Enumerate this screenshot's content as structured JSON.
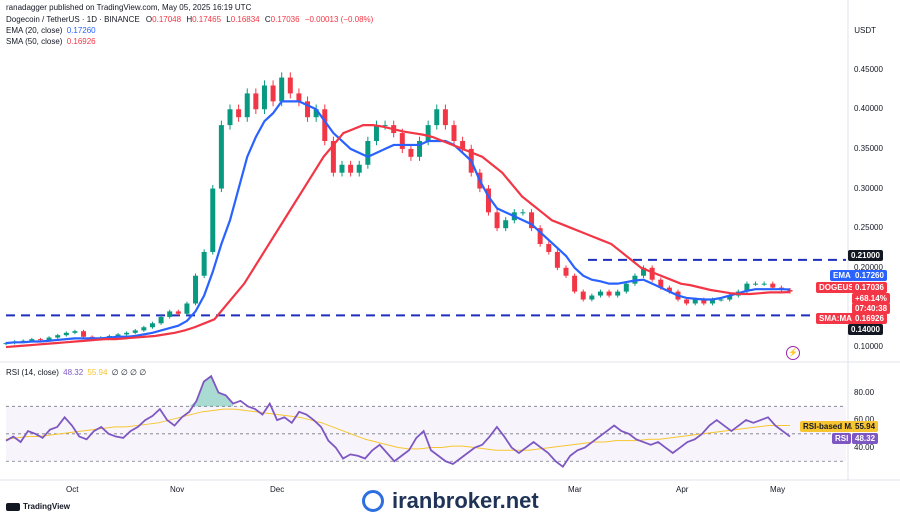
{
  "header": {
    "publisher_text": "ranadagger published on TradingView.com, May 05, 2025 16:19 UTC"
  },
  "legend": {
    "symbol": "Dogecoin / TetherUS · 1D · BINANCE",
    "o_label": "O",
    "o": "0.17048",
    "h_label": "H",
    "h": "0.17465",
    "l_label": "L",
    "l": "0.16834",
    "c_label": "C",
    "c": "0.17036",
    "change": "−0.00013 (−0.08%)",
    "ema_label": "EMA (20, close)",
    "ema_value": "0.17260",
    "sma_label": "SMA (50, close)",
    "sma_value": "0.16926",
    "rsi_label": "RSI (14, close)",
    "rsi_value": "48.32",
    "rsi_ma_value": "55.94",
    "rsi_extra": "∅ ∅ ∅ ∅"
  },
  "price_axis": {
    "currency": "USDT",
    "ticks": [
      "0.45000",
      "0.40000",
      "0.35000",
      "0.30000",
      "0.25000",
      "0.20000",
      "0.10000"
    ]
  },
  "rsi_axis": {
    "ticks": [
      "80.00",
      "60.00",
      "40.00"
    ]
  },
  "tags": {
    "r210": "0.21000",
    "ema_tag_label": "EMA",
    "ema_tag_value": "0.17260",
    "sym_tag_label": "DOGEUSDT",
    "sym_tag_value": "0.17036",
    "pct": "+68.14%",
    "timer": "07:40:38",
    "sma_tag_label": "SMA:MA",
    "sma_tag_value": "0.16926",
    "s140": "0.14000",
    "rsi_ma_tag_label": "RSI-based MA",
    "rsi_ma_tag_value": "55.94",
    "rsi_tag_label": "RSI",
    "rsi_tag_value": "48.32"
  },
  "time_axis": [
    "Oct",
    "Nov",
    "Dec",
    "Mar",
    "Apr",
    "May"
  ],
  "branding": {
    "tradingview": "TradingView",
    "watermark": "iranbroker.net"
  },
  "colors": {
    "ema": "#2962ff",
    "sma": "#f23645",
    "up": "#089981",
    "down": "#f23645",
    "rsi": "#7e57c2",
    "rsi_ma": "#f7c531",
    "level": "#1e2ebd"
  },
  "chart_data": [
    {
      "type": "line",
      "title": "Dogecoin / TetherUS · 1D · BINANCE",
      "ylim": [
        0.09,
        0.5
      ],
      "levels": [
        0.21,
        0.14
      ],
      "series": [
        {
          "name": "DOGEUSDT",
          "values": [
            0.105,
            0.107,
            0.108,
            0.11,
            0.109,
            0.112,
            0.115,
            0.118,
            0.12,
            0.113,
            0.111,
            0.112,
            0.114,
            0.116,
            0.118,
            0.121,
            0.125,
            0.13,
            0.138,
            0.145,
            0.142,
            0.155,
            0.19,
            0.22,
            0.3,
            0.38,
            0.4,
            0.39,
            0.42,
            0.4,
            0.43,
            0.41,
            0.44,
            0.42,
            0.41,
            0.39,
            0.4,
            0.36,
            0.32,
            0.33,
            0.32,
            0.33,
            0.36,
            0.38,
            0.38,
            0.37,
            0.35,
            0.34,
            0.36,
            0.38,
            0.4,
            0.38,
            0.36,
            0.35,
            0.32,
            0.3,
            0.27,
            0.25,
            0.26,
            0.27,
            0.27,
            0.25,
            0.23,
            0.22,
            0.2,
            0.19,
            0.17,
            0.16,
            0.165,
            0.17,
            0.165,
            0.17,
            0.18,
            0.19,
            0.2,
            0.185,
            0.175,
            0.17,
            0.16,
            0.155,
            0.16,
            0.155,
            0.16,
            0.16,
            0.165,
            0.17,
            0.18,
            0.18,
            0.18,
            0.175,
            0.172,
            0.17
          ]
        },
        {
          "name": "EMA (20, close)",
          "values": [
            0.105,
            0.106,
            0.106,
            0.107,
            0.107,
            0.108,
            0.109,
            0.11,
            0.111,
            0.111,
            0.111,
            0.111,
            0.112,
            0.113,
            0.113,
            0.114,
            0.116,
            0.118,
            0.121,
            0.124,
            0.127,
            0.133,
            0.145,
            0.165,
            0.195,
            0.23,
            0.26,
            0.3,
            0.34,
            0.365,
            0.385,
            0.395,
            0.41,
            0.41,
            0.41,
            0.405,
            0.4,
            0.385,
            0.37,
            0.36,
            0.35,
            0.345,
            0.34,
            0.345,
            0.35,
            0.355,
            0.355,
            0.355,
            0.355,
            0.36,
            0.36,
            0.36,
            0.355,
            0.345,
            0.335,
            0.31,
            0.29,
            0.275,
            0.27,
            0.265,
            0.26,
            0.255,
            0.245,
            0.235,
            0.225,
            0.215,
            0.2,
            0.19,
            0.185,
            0.183,
            0.18,
            0.18,
            0.182,
            0.184,
            0.185,
            0.18,
            0.175,
            0.17,
            0.165,
            0.162,
            0.161,
            0.16,
            0.16,
            0.162,
            0.165,
            0.168,
            0.171,
            0.173,
            0.173,
            0.173,
            0.173,
            0.1726
          ]
        },
        {
          "name": "SMA (50, close)",
          "values": [
            0.1,
            0.101,
            0.102,
            0.103,
            0.104,
            0.105,
            0.106,
            0.107,
            0.108,
            0.109,
            0.11,
            0.11,
            0.111,
            0.112,
            0.113,
            0.114,
            0.116,
            0.118,
            0.121,
            0.125,
            0.13,
            0.135,
            0.15,
            0.165,
            0.18,
            0.2,
            0.22,
            0.24,
            0.26,
            0.28,
            0.3,
            0.32,
            0.34,
            0.355,
            0.37,
            0.375,
            0.38,
            0.38,
            0.378,
            0.375,
            0.372,
            0.37,
            0.368,
            0.365,
            0.36,
            0.355,
            0.35,
            0.345,
            0.34,
            0.33,
            0.32,
            0.305,
            0.29,
            0.28,
            0.27,
            0.26,
            0.255,
            0.25,
            0.245,
            0.24,
            0.235,
            0.23,
            0.22,
            0.21,
            0.2,
            0.195,
            0.19,
            0.185,
            0.18,
            0.178,
            0.175,
            0.172,
            0.17,
            0.168,
            0.167,
            0.167,
            0.168,
            0.169,
            0.169,
            0.1693
          ]
        }
      ]
    },
    {
      "type": "line",
      "title": "RSI (14, close)",
      "ylim": [
        20,
        95
      ],
      "levels": [
        70,
        50,
        30
      ],
      "series": [
        {
          "name": "RSI (14, close)",
          "values": [
            45,
            48,
            44,
            52,
            50,
            47,
            53,
            55,
            62,
            56,
            48,
            46,
            52,
            55,
            50,
            48,
            47,
            52,
            55,
            60,
            63,
            68,
            60,
            56,
            62,
            66,
            74,
            88,
            92,
            80,
            78,
            72,
            74,
            70,
            68,
            64,
            72,
            60,
            62,
            58,
            66,
            64,
            60,
            55,
            45,
            40,
            32,
            35,
            34,
            32,
            38,
            42,
            36,
            30,
            34,
            38,
            47,
            52,
            38,
            34,
            30,
            28,
            32,
            36,
            40,
            42,
            48,
            55,
            48,
            40,
            36,
            40,
            44,
            40,
            36,
            30,
            26,
            34,
            38,
            40,
            44,
            48,
            52,
            56,
            52,
            50,
            46,
            44,
            42,
            44,
            40,
            36,
            40,
            44,
            46,
            50,
            56,
            60,
            56,
            52,
            56,
            60,
            58,
            60,
            62,
            56,
            52,
            48
          ]
        },
        {
          "name": "RSI-based MA",
          "values": [
            46,
            47,
            48,
            48,
            49,
            50,
            51,
            52,
            53,
            54,
            55,
            55,
            56,
            57,
            58,
            60,
            62,
            64,
            66,
            67,
            68,
            68,
            67,
            66,
            65,
            64,
            63,
            62,
            60,
            58,
            55,
            52,
            49,
            46,
            44,
            42,
            40,
            39,
            39,
            40,
            40,
            41,
            41,
            40,
            39,
            38,
            38,
            38,
            38,
            39,
            40,
            41,
            42,
            43,
            44,
            44,
            45,
            45,
            45,
            46,
            46,
            47,
            48,
            49,
            50,
            51,
            52,
            53,
            54,
            55,
            56,
            56,
            56
          ]
        }
      ]
    }
  ]
}
